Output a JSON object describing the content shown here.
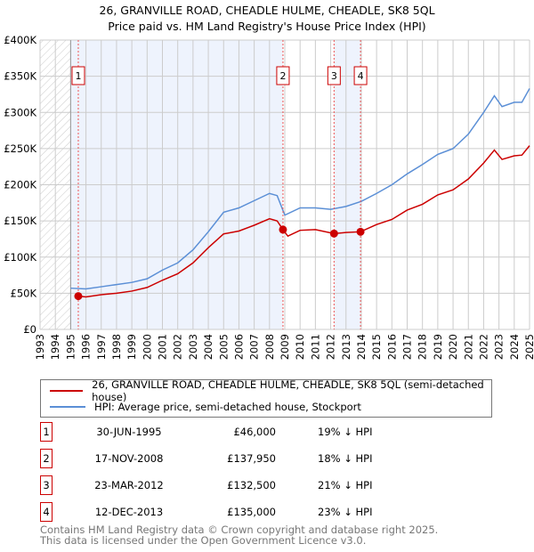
{
  "chart_data": {
    "type": "line",
    "title": "26, GRANVILLE ROAD, CHEADLE HULME, CHEADLE, SK8 5QL",
    "subtitle": "Price paid vs. HM Land Registry's House Price Index (HPI)",
    "xlim": [
      1993,
      2025
    ],
    "ylim": [
      0,
      400000
    ],
    "y_ticks": [
      {
        "v": 0,
        "label": "£0"
      },
      {
        "v": 50000,
        "label": "£50K"
      },
      {
        "v": 100000,
        "label": "£100K"
      },
      {
        "v": 150000,
        "label": "£150K"
      },
      {
        "v": 200000,
        "label": "£200K"
      },
      {
        "v": 250000,
        "label": "£250K"
      },
      {
        "v": 300000,
        "label": "£300K"
      },
      {
        "v": 350000,
        "label": "£350K"
      },
      {
        "v": 400000,
        "label": "£400K"
      }
    ],
    "x_ticks": [
      "1993",
      "1994",
      "1995",
      "1996",
      "1997",
      "1998",
      "1999",
      "2000",
      "2001",
      "2002",
      "2003",
      "2004",
      "2005",
      "2006",
      "2007",
      "2008",
      "2009",
      "2010",
      "2011",
      "2012",
      "2013",
      "2014",
      "2015",
      "2016",
      "2017",
      "2018",
      "2019",
      "2020",
      "2021",
      "2022",
      "2023",
      "2024",
      "2025"
    ],
    "grid": true,
    "series": [
      {
        "name": "26, GRANVILLE ROAD, CHEADLE HULME, CHEADLE, SK8 5QL (semi-detached house)",
        "color": "#cc0000",
        "x": [
          1995.5,
          1996,
          1997,
          1998,
          1999,
          2000,
          2001,
          2002,
          2003,
          2004,
          2005,
          2006,
          2007,
          2008,
          2008.5,
          2008.88,
          2009.2,
          2010,
          2011,
          2012.22,
          2013,
          2013.95,
          2015,
          2016,
          2017,
          2018,
          2019,
          2020,
          2021,
          2022,
          2022.7,
          2023.2,
          2024,
          2024.5,
          2025
        ],
        "values": [
          46000,
          45000,
          48000,
          50000,
          53000,
          58000,
          68000,
          77000,
          92000,
          113000,
          132000,
          136000,
          144000,
          153000,
          150000,
          137950,
          129000,
          137000,
          138000,
          132500,
          134000,
          135000,
          145000,
          152000,
          165000,
          173000,
          186000,
          193000,
          208000,
          230000,
          248000,
          235000,
          240000,
          241000,
          254000
        ]
      },
      {
        "name": "HPI: Average price, semi-detached house, Stockport",
        "color": "#5b8fd6",
        "x": [
          1995,
          1996,
          1997,
          1998,
          1999,
          2000,
          2001,
          2002,
          2003,
          2004,
          2005,
          2006,
          2007,
          2008,
          2008.5,
          2009,
          2010,
          2011,
          2012,
          2013,
          2014,
          2015,
          2016,
          2017,
          2018,
          2019,
          2020,
          2021,
          2022,
          2022.7,
          2023.2,
          2024,
          2024.5,
          2025
        ],
        "values": [
          57000,
          56000,
          59000,
          62000,
          65000,
          70000,
          82000,
          92000,
          110000,
          135000,
          162000,
          168000,
          178000,
          188000,
          185000,
          158000,
          168000,
          168000,
          166000,
          170000,
          177000,
          188000,
          200000,
          215000,
          228000,
          242000,
          250000,
          270000,
          300000,
          323000,
          308000,
          314000,
          314000,
          333000
        ]
      }
    ],
    "sales": [
      {
        "n": "1",
        "x": 1995.5,
        "value": 46000,
        "date": "30-JUN-1995",
        "price": "£46,000",
        "hpi": "19% ↓ HPI"
      },
      {
        "n": "2",
        "x": 2008.88,
        "value": 137950,
        "date": "17-NOV-2008",
        "price": "£137,950",
        "hpi": "18% ↓ HPI"
      },
      {
        "n": "3",
        "x": 2012.22,
        "value": 132500,
        "date": "23-MAR-2012",
        "price": "£132,500",
        "hpi": "21% ↓ HPI"
      },
      {
        "n": "4",
        "x": 2013.95,
        "value": 135000,
        "date": "12-DEC-2013",
        "price": "£135,000",
        "hpi": "23% ↓ HPI"
      }
    ]
  },
  "footer": [
    "Contains HM Land Registry data © Crown copyright and database right 2025.",
    "This data is licensed under the Open Government Licence v3.0."
  ]
}
